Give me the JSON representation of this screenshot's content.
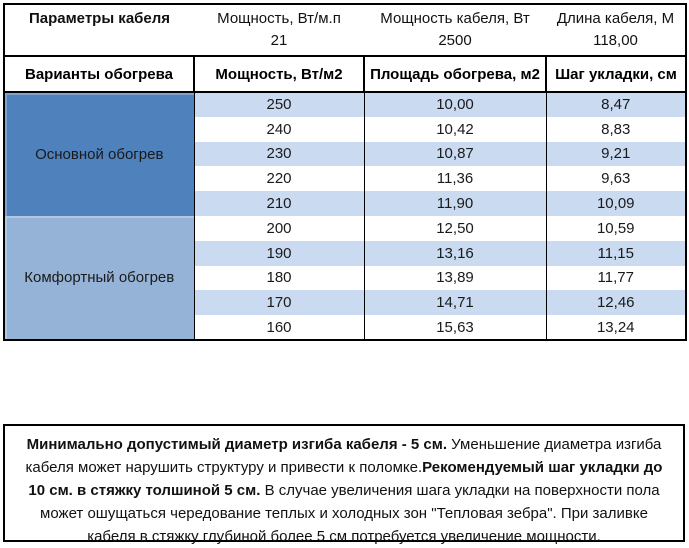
{
  "cable_params": {
    "title": "Параметры кабеля",
    "items": [
      {
        "label": "Мощность, Вт/м.п",
        "value": "21"
      },
      {
        "label": "Мощность кабеля, Вт",
        "value": "2500"
      },
      {
        "label": "Длина кабеля, М",
        "value": "118,00"
      }
    ]
  },
  "heating_table": {
    "headers": [
      "Варианты обогрева",
      "Мощность, Вт/м2",
      "Площадь обогрева, м2",
      "Шаг укладки, см"
    ],
    "groups": [
      {
        "label": "Основной обогрев",
        "rows": [
          [
            "250",
            "10,00",
            "8,47"
          ],
          [
            "240",
            "10,42",
            "8,83"
          ],
          [
            "230",
            "10,87",
            "9,21"
          ],
          [
            "220",
            "11,36",
            "9,63"
          ],
          [
            "210",
            "11,90",
            "10,09"
          ]
        ]
      },
      {
        "label": "Комфортный обогрев",
        "rows": [
          [
            "200",
            "12,50",
            "10,59"
          ],
          [
            "190",
            "13,16",
            "11,15"
          ],
          [
            "180",
            "13,89",
            "11,77"
          ],
          [
            "170",
            "14,71",
            "12,46"
          ],
          [
            "160",
            "15,63",
            "13,24"
          ]
        ]
      }
    ]
  },
  "note": {
    "segments": [
      {
        "text": "Минимально допустимый диаметр изгиба кабеля - 5 см.",
        "bold": true
      },
      {
        "text": "  Уменьшение диаметра изгиба кабеля может нарушить структуру и привести к поломке.",
        "bold": false
      },
      {
        "text": "Рекомендуемый шаг укладки до 10 см. в стяжку толшиной 5 см.",
        "bold": true
      },
      {
        "text": " В  случае увеличения шага укладки на поверхности пола может ошущаться чередование теплых и холодных зон \"Тепловая зебра\". При заливке кабеля в стяжку глубиной более 5 см потребуется увеличение мощности.",
        "bold": false
      }
    ]
  },
  "colors": {
    "group_primary": "#4f81bd",
    "group_comfort": "#95b3d7",
    "row_band": "#c9daf1",
    "row_plain": "#ffffff",
    "border": "#000000"
  }
}
